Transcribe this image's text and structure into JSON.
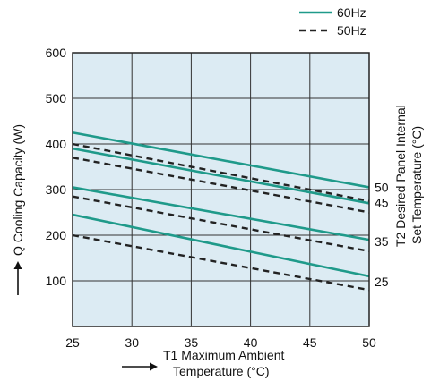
{
  "chart_data": {
    "type": "line",
    "xlabel": [
      "T1 Maximum Ambient",
      "Temperature (°C)"
    ],
    "ylabel": "Q Cooling Capacity (W)",
    "right_label": [
      "T2 Desired Panel Internal",
      "Set Temperature (°C)"
    ],
    "xlim": [
      25,
      50
    ],
    "ylim": [
      0,
      600
    ],
    "x_ticks": [
      "25",
      "30",
      "35",
      "40",
      "45",
      "50"
    ],
    "y_ticks": [
      "100",
      "200",
      "300",
      "400",
      "500",
      "600"
    ],
    "grid": true,
    "plot_background": "#dcebf3",
    "legend": [
      {
        "name": "60Hz",
        "style": "solid",
        "color": "#1f9a8a"
      },
      {
        "name": "50Hz",
        "style": "dashed",
        "color": "#222222"
      }
    ],
    "legend_position": "top-right",
    "series": [
      {
        "name": "60Hz",
        "t2": "50",
        "x": [
          25,
          50
        ],
        "y": [
          425,
          305
        ]
      },
      {
        "name": "60Hz",
        "t2": "45",
        "x": [
          25,
          50
        ],
        "y": [
          390,
          270
        ]
      },
      {
        "name": "60Hz",
        "t2": "35",
        "x": [
          25,
          50
        ],
        "y": [
          305,
          190
        ]
      },
      {
        "name": "60Hz",
        "t2": "25",
        "x": [
          25,
          50
        ],
        "y": [
          245,
          110
        ]
      },
      {
        "name": "50Hz",
        "t2": "50",
        "x": [
          25,
          50
        ],
        "y": [
          400,
          275
        ]
      },
      {
        "name": "50Hz",
        "t2": "45",
        "x": [
          25,
          50
        ],
        "y": [
          370,
          250
        ]
      },
      {
        "name": "50Hz",
        "t2": "35",
        "x": [
          25,
          50
        ],
        "y": [
          285,
          165
        ]
      },
      {
        "name": "50Hz",
        "t2": "25",
        "x": [
          25,
          50
        ],
        "y": [
          200,
          80
        ]
      }
    ],
    "t2_labels": [
      {
        "text": "50",
        "y": 305
      },
      {
        "text": "45",
        "y": 272
      },
      {
        "text": "35",
        "y": 186
      },
      {
        "text": "25",
        "y": 98
      }
    ]
  }
}
